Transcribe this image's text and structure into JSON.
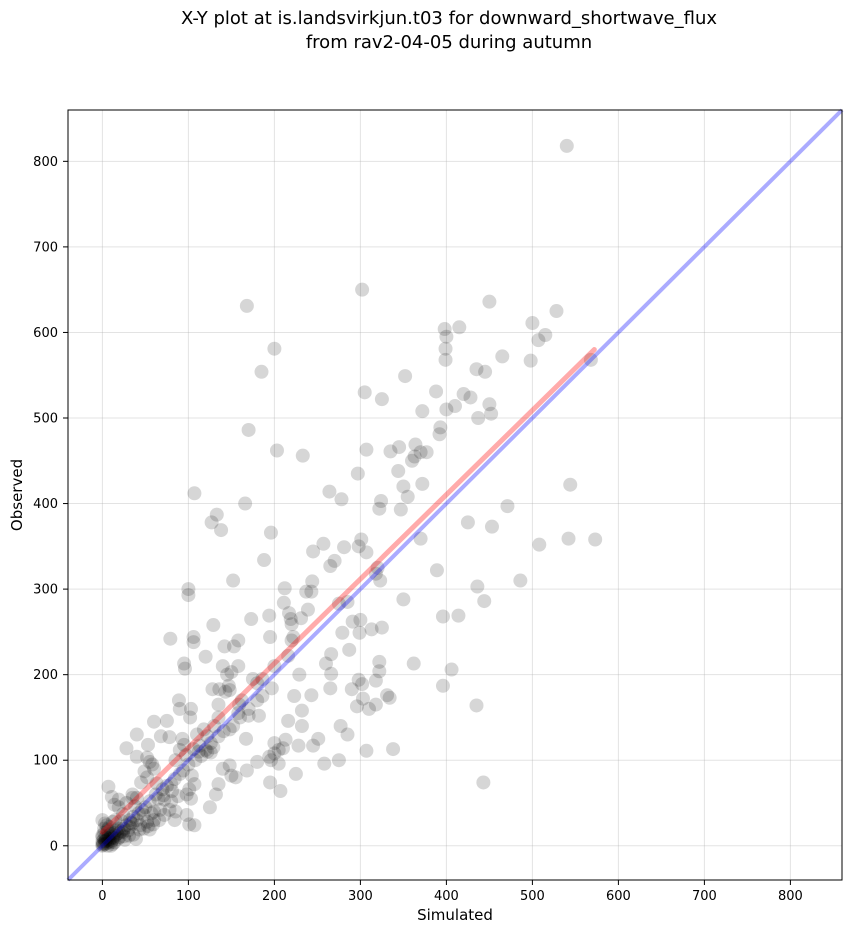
{
  "chart_data": {
    "type": "scatter",
    "title_line1": "X-Y plot at is.landsvirkjun.t03 for downward_shortwave_flux",
    "title_line2": "from rav2-04-05 during autumn",
    "xlabel": "Simulated",
    "ylabel": "Observed",
    "xlim": [
      -40,
      860
    ],
    "ylim": [
      -40,
      860
    ],
    "xticks": [
      0,
      100,
      200,
      300,
      400,
      500,
      600,
      700,
      800
    ],
    "yticks": [
      0,
      100,
      200,
      300,
      400,
      500,
      600,
      700,
      800
    ],
    "grid": true,
    "colors": {
      "points": "#000000",
      "one_to_one_line": "#0000ff",
      "fit_line": "#ff0000"
    },
    "one_to_one_line": {
      "x": [
        -40,
        860
      ],
      "y": [
        -40,
        860
      ]
    },
    "fit_line": {
      "x": [
        0,
        572
      ],
      "y": [
        16,
        580
      ]
    },
    "points": [
      [
        540,
        818
      ],
      [
        168,
        631
      ],
      [
        302,
        650
      ],
      [
        450,
        636
      ],
      [
        200,
        581
      ],
      [
        185,
        554
      ],
      [
        170,
        486
      ],
      [
        203,
        462
      ],
      [
        233,
        456
      ],
      [
        528,
        625
      ],
      [
        500,
        611
      ],
      [
        415,
        606
      ],
      [
        398,
        604
      ],
      [
        400,
        595
      ],
      [
        399,
        581
      ],
      [
        399,
        568
      ],
      [
        515,
        597
      ],
      [
        507,
        591
      ],
      [
        465,
        572
      ],
      [
        498,
        567
      ],
      [
        568,
        568
      ],
      [
        445,
        554
      ],
      [
        435,
        557
      ],
      [
        352,
        549
      ],
      [
        305,
        530
      ],
      [
        325,
        522
      ],
      [
        388,
        531
      ],
      [
        420,
        528
      ],
      [
        428,
        524
      ],
      [
        410,
        514
      ],
      [
        400,
        510
      ],
      [
        372,
        508
      ],
      [
        450,
        516
      ],
      [
        452,
        505
      ],
      [
        437,
        500
      ],
      [
        393,
        489
      ],
      [
        392,
        481
      ],
      [
        345,
        466
      ],
      [
        364,
        469
      ],
      [
        370,
        460
      ],
      [
        377,
        460
      ],
      [
        360,
        450
      ],
      [
        335,
        461
      ],
      [
        307,
        463
      ],
      [
        363,
        455
      ],
      [
        344,
        438
      ],
      [
        297,
        435
      ],
      [
        107,
        412
      ],
      [
        166,
        400
      ],
      [
        188,
        334
      ],
      [
        544,
        422
      ],
      [
        372,
        423
      ],
      [
        350,
        420
      ],
      [
        355,
        408
      ],
      [
        324,
        403
      ],
      [
        471,
        397
      ],
      [
        322,
        394
      ],
      [
        347,
        393
      ],
      [
        278,
        405
      ],
      [
        264,
        414
      ],
      [
        133,
        387
      ],
      [
        127,
        378
      ],
      [
        138,
        369
      ],
      [
        196,
        366
      ],
      [
        542,
        359
      ],
      [
        573,
        358
      ],
      [
        508,
        352
      ],
      [
        453,
        373
      ],
      [
        425,
        378
      ],
      [
        370,
        359
      ],
      [
        301,
        358
      ],
      [
        298,
        350
      ],
      [
        257,
        353
      ],
      [
        245,
        344
      ],
      [
        307,
        343
      ],
      [
        270,
        333
      ],
      [
        265,
        327
      ],
      [
        281,
        349
      ],
      [
        152,
        310
      ],
      [
        486,
        310
      ],
      [
        320,
        325
      ],
      [
        318,
        318
      ],
      [
        323,
        310
      ],
      [
        389,
        322
      ],
      [
        436,
        303
      ],
      [
        350,
        288
      ],
      [
        444,
        286
      ],
      [
        100,
        300
      ],
      [
        100,
        293
      ],
      [
        212,
        301
      ],
      [
        244,
        309
      ],
      [
        243,
        297
      ],
      [
        237,
        297
      ],
      [
        239,
        276
      ],
      [
        231,
        266
      ],
      [
        211,
        284
      ],
      [
        217,
        272
      ],
      [
        219,
        265
      ],
      [
        285,
        285
      ],
      [
        300,
        264
      ],
      [
        291,
        262
      ],
      [
        299,
        249
      ],
      [
        279,
        249
      ],
      [
        325,
        255
      ],
      [
        313,
        253
      ],
      [
        396,
        268
      ],
      [
        414,
        269
      ],
      [
        106,
        244
      ],
      [
        106,
        238
      ],
      [
        173,
        265
      ],
      [
        194,
        269
      ],
      [
        158,
        240
      ],
      [
        195,
        244
      ],
      [
        222,
        244
      ],
      [
        220,
        259
      ],
      [
        79,
        242
      ],
      [
        95,
        213
      ],
      [
        96,
        207
      ],
      [
        120,
        221
      ],
      [
        129,
        258
      ],
      [
        142,
        233
      ],
      [
        153,
        233
      ],
      [
        158,
        210
      ],
      [
        150,
        203
      ],
      [
        186,
        195
      ],
      [
        200,
        210
      ],
      [
        216,
        222
      ],
      [
        220,
        240
      ],
      [
        260,
        213
      ],
      [
        266,
        224
      ],
      [
        266,
        201
      ],
      [
        287,
        229
      ],
      [
        322,
        215
      ],
      [
        318,
        193
      ],
      [
        298,
        194
      ],
      [
        302,
        189
      ],
      [
        303,
        172
      ],
      [
        290,
        183
      ],
      [
        296,
        163
      ],
      [
        310,
        160
      ],
      [
        265,
        184
      ],
      [
        243,
        176
      ],
      [
        229,
        200
      ],
      [
        223,
        175
      ],
      [
        232,
        158
      ],
      [
        232,
        140
      ],
      [
        216,
        146
      ],
      [
        228,
        117
      ],
      [
        213,
        124
      ],
      [
        205,
        112
      ],
      [
        251,
        125
      ],
      [
        245,
        117
      ],
      [
        200,
        120
      ],
      [
        205,
        96
      ],
      [
        196,
        100
      ],
      [
        195,
        74
      ],
      [
        207,
        64
      ],
      [
        225,
        84
      ],
      [
        258,
        96
      ],
      [
        275,
        100
      ],
      [
        307,
        111
      ],
      [
        338,
        113
      ],
      [
        318,
        165
      ],
      [
        322,
        204
      ],
      [
        331,
        176
      ],
      [
        334,
        173
      ],
      [
        362,
        213
      ],
      [
        406,
        206
      ],
      [
        396,
        187
      ],
      [
        435,
        164
      ],
      [
        443,
        74
      ],
      [
        277,
        140
      ],
      [
        285,
        130
      ],
      [
        275,
        283
      ],
      [
        140,
        210
      ],
      [
        145,
        200
      ],
      [
        147,
        187
      ],
      [
        128,
        183
      ],
      [
        136,
        183
      ],
      [
        148,
        182
      ],
      [
        143,
        180
      ],
      [
        180,
        190
      ],
      [
        159,
        165
      ],
      [
        162,
        170
      ],
      [
        135,
        165
      ],
      [
        135,
        150
      ],
      [
        170,
        152
      ],
      [
        182,
        152
      ],
      [
        197,
        184
      ],
      [
        175,
        195
      ],
      [
        158,
        155
      ],
      [
        167,
        125
      ],
      [
        130,
        140
      ],
      [
        113,
        117
      ],
      [
        122,
        110
      ],
      [
        126,
        109
      ],
      [
        129,
        115
      ],
      [
        115,
        105
      ],
      [
        106,
        113
      ],
      [
        97,
        106
      ],
      [
        89,
        170
      ],
      [
        103,
        160
      ],
      [
        102,
        150
      ],
      [
        90,
        160
      ],
      [
        93,
        125
      ],
      [
        75,
        146
      ],
      [
        60,
        145
      ],
      [
        68,
        128
      ],
      [
        78,
        127
      ],
      [
        53,
        118
      ],
      [
        40,
        130
      ],
      [
        28,
        114
      ],
      [
        40,
        104
      ],
      [
        52,
        103
      ],
      [
        55,
        98
      ],
      [
        58,
        95
      ],
      [
        60,
        90
      ],
      [
        49,
        87
      ],
      [
        52,
        80
      ],
      [
        45,
        74
      ],
      [
        63,
        73
      ],
      [
        71,
        59
      ],
      [
        72,
        54
      ],
      [
        80,
        52
      ],
      [
        98,
        60
      ],
      [
        98,
        36
      ],
      [
        103,
        55
      ],
      [
        101,
        66
      ],
      [
        107,
        72
      ],
      [
        104,
        82
      ],
      [
        101,
        25
      ],
      [
        107,
        24
      ],
      [
        85,
        40
      ],
      [
        84,
        30
      ],
      [
        81,
        64
      ],
      [
        88,
        58
      ],
      [
        60,
        40
      ],
      [
        67,
        42
      ],
      [
        60,
        30
      ],
      [
        59,
        25
      ],
      [
        53,
        23
      ],
      [
        55,
        19
      ],
      [
        43,
        19
      ],
      [
        33,
        27
      ],
      [
        32,
        22
      ],
      [
        31,
        12
      ],
      [
        36,
        13
      ],
      [
        39,
        8
      ],
      [
        26,
        7
      ],
      [
        25,
        11
      ],
      [
        20,
        10
      ],
      [
        22,
        29
      ],
      [
        24,
        37
      ],
      [
        19,
        45
      ],
      [
        14,
        48
      ],
      [
        11,
        57
      ],
      [
        19,
        54
      ],
      [
        28,
        50
      ],
      [
        35,
        56
      ],
      [
        38,
        46
      ],
      [
        40,
        56
      ],
      [
        35,
        60
      ],
      [
        7,
        69
      ],
      [
        15,
        30
      ],
      [
        12,
        28
      ],
      [
        8,
        22
      ],
      [
        0,
        30
      ],
      [
        3,
        26
      ],
      [
        5,
        24
      ],
      [
        6,
        17
      ],
      [
        6,
        19
      ],
      [
        2,
        15
      ],
      [
        0,
        12
      ],
      [
        0,
        10
      ],
      [
        2,
        8
      ],
      [
        4,
        6
      ],
      [
        0,
        5
      ],
      [
        1,
        3
      ],
      [
        3,
        2
      ],
      [
        0,
        0
      ],
      [
        6,
        0
      ],
      [
        8,
        5
      ],
      [
        10,
        4
      ],
      [
        12,
        10
      ],
      [
        14,
        15
      ],
      [
        16,
        18
      ],
      [
        18,
        20
      ],
      [
        8,
        12
      ],
      [
        10,
        14
      ],
      [
        4,
        10
      ],
      [
        2,
        20
      ],
      [
        1,
        1
      ],
      [
        0,
        2
      ],
      [
        5,
        3
      ],
      [
        9,
        8
      ],
      [
        11,
        6
      ],
      [
        13,
        9
      ],
      [
        15,
        12
      ],
      [
        17,
        14
      ],
      [
        7,
        7
      ],
      [
        3,
        5
      ],
      [
        6,
        9
      ],
      [
        20,
        15
      ],
      [
        22,
        17
      ],
      [
        25,
        20
      ],
      [
        28,
        24
      ],
      [
        30,
        18
      ],
      [
        32,
        30
      ],
      [
        35,
        26
      ],
      [
        40,
        30
      ],
      [
        42,
        38
      ],
      [
        46,
        42
      ],
      [
        50,
        45
      ],
      [
        48,
        36
      ],
      [
        55,
        52
      ],
      [
        62,
        60
      ],
      [
        65,
        55
      ],
      [
        70,
        66
      ],
      [
        75,
        70
      ],
      [
        80,
        72
      ],
      [
        84,
        78
      ],
      [
        90,
        84
      ],
      [
        94,
        88
      ],
      [
        100,
        95
      ],
      [
        108,
        100
      ],
      [
        112,
        110
      ],
      [
        120,
        112
      ],
      [
        126,
        120
      ],
      [
        135,
        128
      ],
      [
        141,
        134
      ],
      [
        148,
        136
      ],
      [
        152,
        140
      ],
      [
        160,
        150
      ],
      [
        170,
        160
      ],
      [
        180,
        170
      ],
      [
        186,
        175
      ],
      [
        140,
        90
      ],
      [
        148,
        94
      ],
      [
        150,
        82
      ],
      [
        155,
        80
      ],
      [
        135,
        72
      ],
      [
        132,
        60
      ],
      [
        125,
        45
      ],
      [
        168,
        88
      ],
      [
        180,
        98
      ],
      [
        194,
        104
      ],
      [
        200,
        108
      ],
      [
        210,
        114
      ],
      [
        85,
        100
      ],
      [
        90,
        112
      ],
      [
        95,
        118
      ],
      [
        110,
        130
      ],
      [
        118,
        136
      ],
      [
        122,
        128
      ],
      [
        66,
        30
      ],
      [
        72,
        36
      ],
      [
        78,
        42
      ],
      [
        44,
        24
      ],
      [
        48,
        20
      ],
      [
        52,
        28
      ],
      [
        57,
        38
      ],
      [
        36,
        34
      ],
      [
        24,
        16
      ],
      [
        18,
        8
      ],
      [
        14,
        4
      ],
      [
        12,
        2
      ],
      [
        10,
        0
      ]
    ]
  }
}
